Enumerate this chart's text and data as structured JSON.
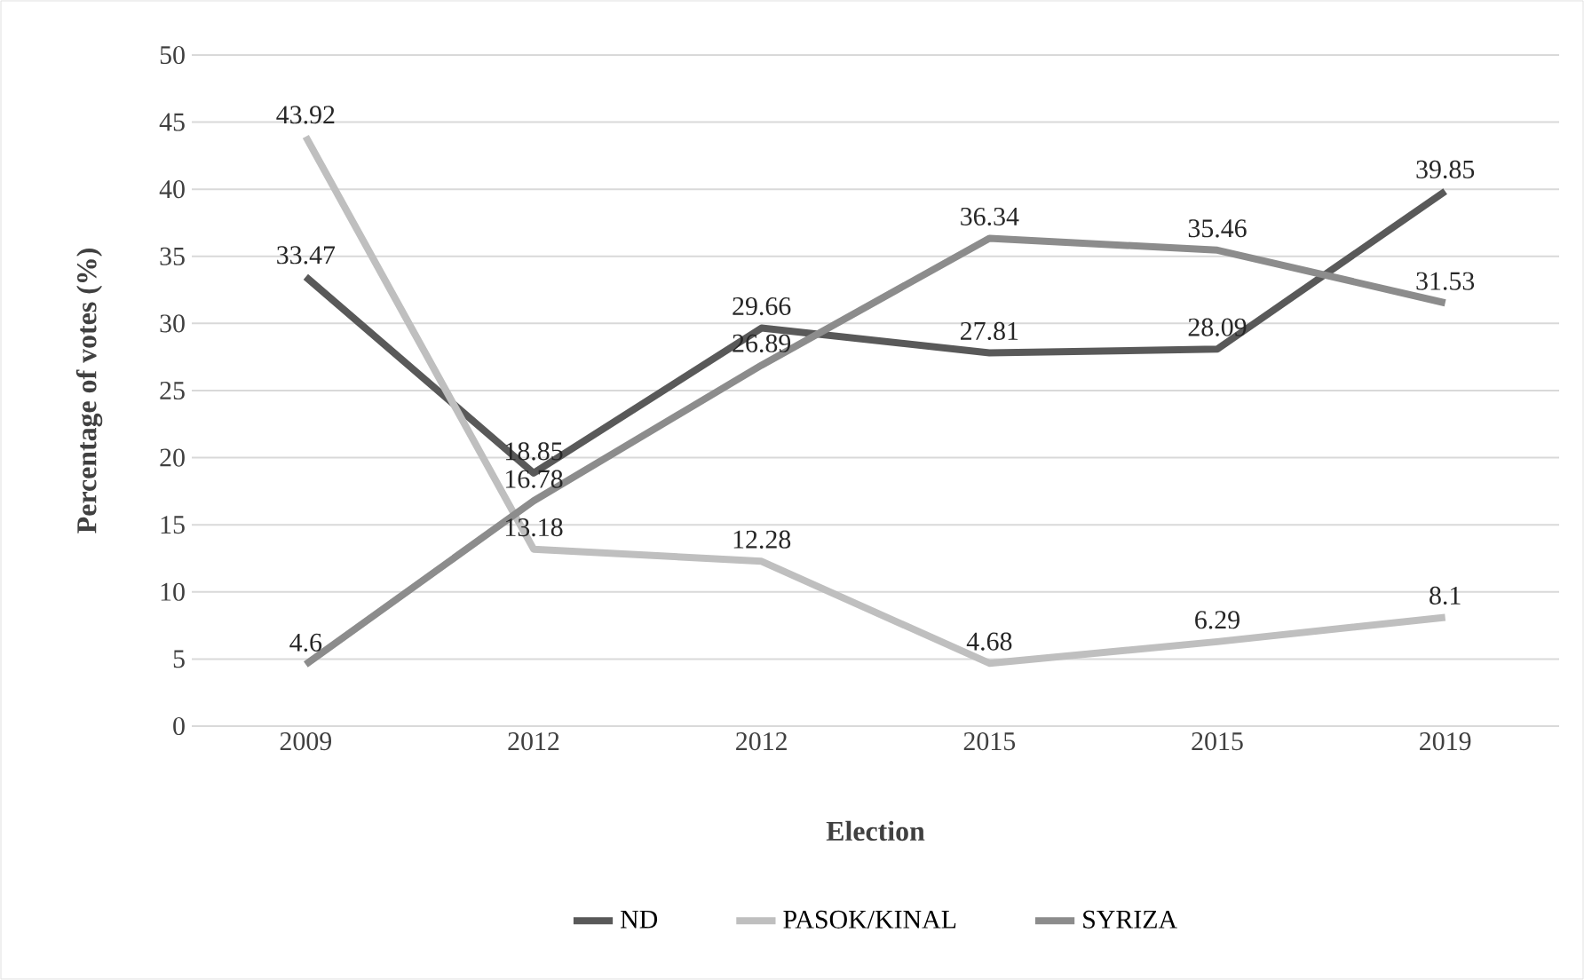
{
  "chart_data": {
    "type": "line",
    "xlabel": "Election",
    "ylabel": "Percentage of votes (%)",
    "categories": [
      "2009",
      "2012",
      "2012",
      "2015",
      "2015",
      "2019"
    ],
    "series": [
      {
        "name": "ND",
        "color": "#595959",
        "values": [
          33.47,
          18.85,
          29.66,
          27.81,
          28.09,
          39.85
        ]
      },
      {
        "name": "PASOK/KINAL",
        "color": "#bfbfbf",
        "values": [
          43.92,
          13.18,
          12.28,
          4.68,
          6.29,
          8.1
        ]
      },
      {
        "name": "SYRIZA",
        "color": "#8c8c8c",
        "values": [
          4.6,
          16.78,
          26.89,
          36.34,
          35.46,
          31.53
        ]
      }
    ],
    "ylim": [
      0,
      50
    ],
    "yticks": [
      0,
      5,
      10,
      15,
      20,
      25,
      30,
      35,
      40,
      45,
      50
    ],
    "grid": "y",
    "legend": "bottom",
    "data_labels": true,
    "marker": "none",
    "line_style": "solid"
  }
}
